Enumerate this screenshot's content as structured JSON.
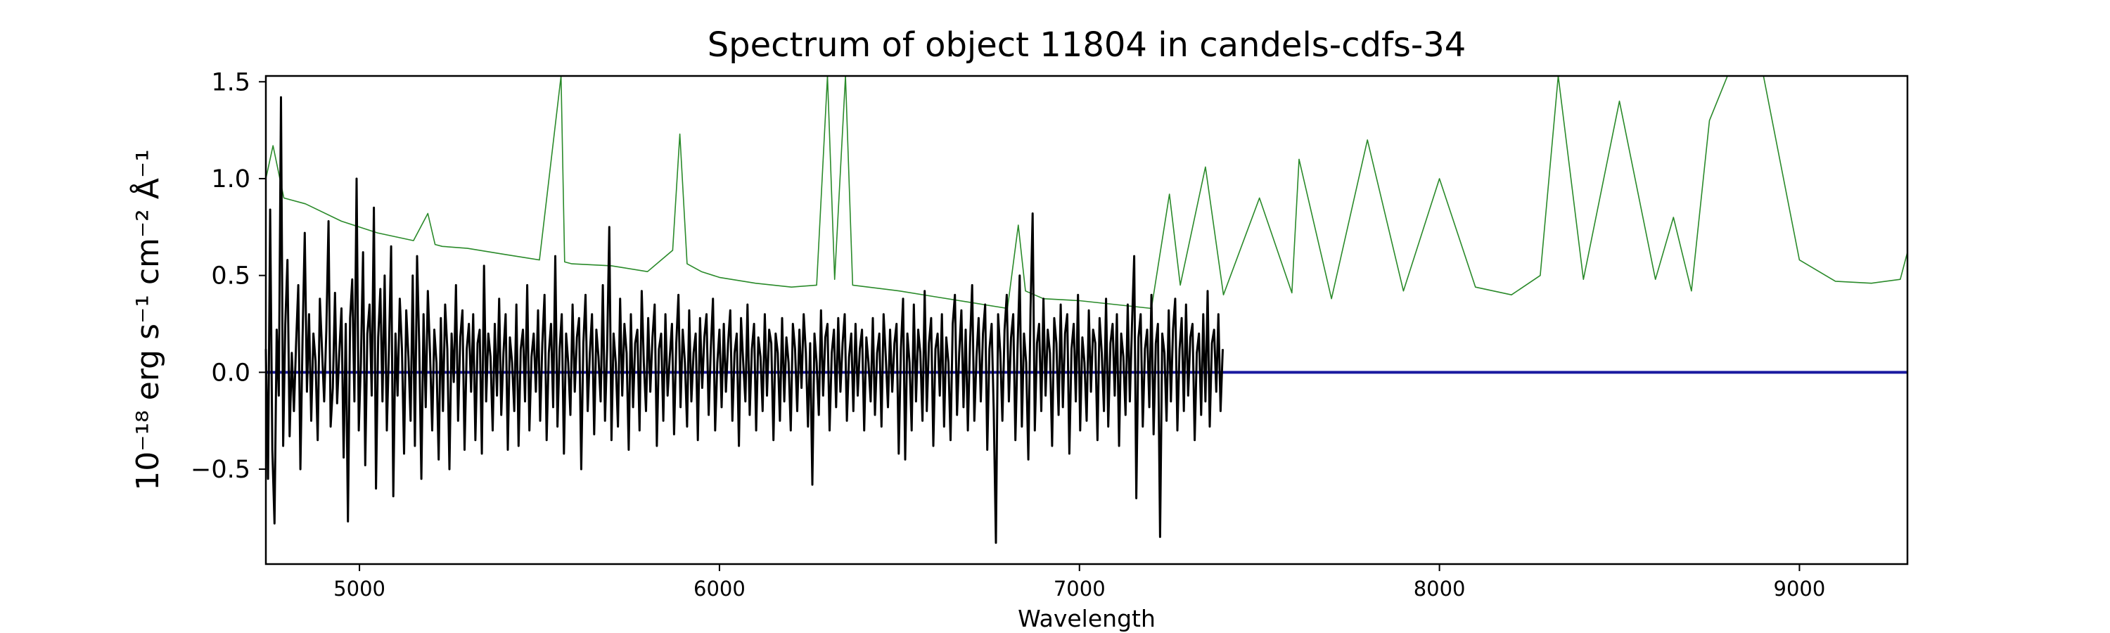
{
  "chart_data": {
    "type": "line",
    "title": "Spectrum of object 11804 in candels-cdfs-34",
    "xlabel": "Wavelength",
    "ylabel": "10⁻¹⁸ erg s⁻¹ cm⁻² Å⁻¹",
    "xlim": [
      4740,
      9300
    ],
    "ylim": [
      -0.99,
      1.53
    ],
    "x_ticks": [
      5000,
      6000,
      7000,
      8000,
      9000
    ],
    "x_tick_labels": [
      "5000",
      "6000",
      "7000",
      "8000",
      "9000"
    ],
    "y_ticks": [
      -0.5,
      0.0,
      0.5,
      1.0,
      1.5
    ],
    "y_tick_labels": [
      "−0.5",
      "0.0",
      "0.5",
      "1.0",
      "1.5"
    ],
    "grid": false,
    "legend": "none",
    "series": [
      {
        "role": "noise / error spectrum",
        "color": "#2a8a2a",
        "x": [
          4740,
          4760,
          4790,
          4850,
          4950,
          5050,
          5150,
          5190,
          5210,
          5230,
          5300,
          5400,
          5500,
          5560,
          5570,
          5590,
          5700,
          5800,
          5870,
          5890,
          5910,
          5950,
          6000,
          6100,
          6200,
          6270,
          6300,
          6320,
          6350,
          6370,
          6500,
          6600,
          6700,
          6800,
          6830,
          6850,
          6900,
          7000,
          7100,
          7200,
          7250,
          7280,
          7350,
          7400,
          7500,
          7590,
          7610,
          7700,
          7800,
          7900,
          8000,
          8100,
          8200,
          8280,
          8330,
          8400,
          8500,
          8600,
          8650,
          8700,
          8750,
          8800,
          8900,
          9000,
          9100,
          9200,
          9280,
          9300
        ],
        "y": [
          1.0,
          1.17,
          0.9,
          0.87,
          0.78,
          0.72,
          0.68,
          0.82,
          0.66,
          0.65,
          0.64,
          0.61,
          0.58,
          1.53,
          0.57,
          0.56,
          0.55,
          0.52,
          0.63,
          1.23,
          0.56,
          0.52,
          0.49,
          0.46,
          0.44,
          0.45,
          1.53,
          0.48,
          1.53,
          0.45,
          0.42,
          0.39,
          0.36,
          0.33,
          0.76,
          0.42,
          0.38,
          0.37,
          0.35,
          0.33,
          0.92,
          0.45,
          1.06,
          0.4,
          0.9,
          0.41,
          1.1,
          0.38,
          1.2,
          0.42,
          1.0,
          0.44,
          0.4,
          0.5,
          1.53,
          0.48,
          1.4,
          0.48,
          0.8,
          0.42,
          1.3,
          1.53,
          1.53,
          0.58,
          0.47,
          0.46,
          0.48,
          0.62
        ]
      },
      {
        "role": "model",
        "color": "#1a1aa0",
        "x": [
          4740,
          9300
        ],
        "y": [
          0.0,
          0.0
        ]
      },
      {
        "role": "observed flux",
        "color": "#000000",
        "x_start": 4740,
        "x_step": 6,
        "y": [
          0.12,
          -0.55,
          0.84,
          -0.4,
          -0.78,
          0.22,
          -0.12,
          1.42,
          -0.38,
          0.25,
          0.58,
          -0.33,
          0.1,
          -0.2,
          0.15,
          0.45,
          -0.5,
          0.18,
          0.72,
          -0.1,
          0.3,
          -0.25,
          0.2,
          0.06,
          -0.35,
          0.38,
          0.12,
          -0.15,
          0.22,
          0.78,
          -0.28,
          -0.08,
          0.41,
          -0.16,
          0.1,
          0.33,
          -0.44,
          0.25,
          -0.77,
          0.28,
          0.48,
          -0.15,
          1.0,
          -0.3,
          0.05,
          0.62,
          -0.48,
          0.2,
          0.35,
          -0.12,
          0.85,
          -0.6,
          0.18,
          0.43,
          -0.15,
          0.5,
          -0.3,
          0.12,
          0.65,
          -0.64,
          0.2,
          -0.12,
          0.38,
          0.12,
          -0.42,
          0.32,
          0.08,
          -0.25,
          0.5,
          -0.38,
          0.6,
          0.15,
          -0.55,
          0.3,
          -0.18,
          0.42,
          0.1,
          -0.3,
          0.22,
          0.05,
          -0.45,
          0.28,
          -0.2,
          0.35,
          0.12,
          -0.5,
          0.2,
          -0.05,
          0.45,
          -0.25,
          0.18,
          0.32,
          -0.4,
          0.12,
          0.25,
          -0.1,
          0.3,
          -0.35,
          0.15,
          0.22,
          -0.42,
          0.55,
          -0.15,
          0.2,
          0.08,
          -0.3,
          0.25,
          -0.12,
          0.38,
          -0.22,
          0.1,
          0.3,
          -0.4,
          0.18,
          0.05,
          -0.2,
          0.35,
          -0.38,
          0.12,
          0.22,
          -0.15,
          0.45,
          -0.3,
          0.08,
          0.2,
          -0.1,
          0.32,
          -0.25,
          0.15,
          0.4,
          -0.35,
          0.1,
          0.25,
          -0.18,
          0.6,
          -0.28,
          0.12,
          0.3,
          -0.42,
          0.2,
          0.05,
          -0.22,
          0.35,
          -0.1,
          0.18,
          0.28,
          -0.5,
          0.15,
          0.4,
          -0.2,
          0.1,
          0.3,
          -0.32,
          0.22,
          0.08,
          -0.15,
          0.45,
          -0.25,
          0.12,
          0.75,
          -0.35,
          0.2,
          0.05,
          -0.28,
          0.38,
          -0.12,
          0.25,
          0.1,
          -0.4,
          0.3,
          -0.18,
          0.15,
          0.22,
          -0.3,
          0.42,
          0.05,
          -0.2,
          0.28,
          -0.1,
          0.18,
          0.35,
          -0.38,
          0.12,
          0.2,
          -0.25,
          0.3,
          -0.12,
          0.08,
          0.25,
          -0.32,
          0.15,
          0.4,
          -0.18,
          0.22,
          0.05,
          -0.28,
          0.32,
          -0.15,
          0.1,
          0.2,
          -0.35,
          0.28,
          -0.08,
          0.18,
          0.3,
          -0.22,
          0.12,
          0.38,
          -0.3,
          0.05,
          0.22,
          -0.18,
          0.25,
          -0.1,
          0.15,
          0.32,
          -0.25,
          0.1,
          0.2,
          -0.38,
          0.28,
          0.05,
          -0.15,
          0.35,
          -0.22,
          0.12,
          0.25,
          -0.3,
          0.18,
          0.08,
          -0.2,
          0.3,
          -0.12,
          0.22,
          0.15,
          -0.35,
          0.2,
          0.1,
          -0.25,
          0.28,
          -0.15,
          0.18,
          0.05,
          -0.3,
          0.25,
          0.12,
          -0.2,
          0.22,
          -0.08,
          0.3,
          0.1,
          -0.28,
          0.15,
          -0.58,
          0.2,
          0.05,
          -0.22,
          0.32,
          -0.12,
          0.18,
          0.25,
          -0.3,
          0.1,
          0.22,
          -0.18,
          0.28,
          -0.1,
          0.15,
          0.3,
          -0.25,
          0.08,
          0.2,
          -0.2,
          0.25,
          -0.12,
          0.12,
          0.22,
          -0.3,
          0.18,
          0.05,
          -0.15,
          0.28,
          -0.22,
          0.1,
          0.2,
          -0.28,
          0.3,
          0.08,
          -0.18,
          0.22,
          -0.1,
          0.15,
          0.25,
          -0.42,
          0.12,
          0.38,
          -0.45,
          0.2,
          0.05,
          -0.3,
          0.35,
          -0.15,
          0.22,
          0.1,
          -0.25,
          0.42,
          -0.2,
          0.15,
          0.28,
          -0.38,
          0.12,
          0.2,
          -0.12,
          0.3,
          -0.28,
          0.18,
          0.05,
          -0.35,
          0.25,
          0.4,
          -0.22,
          0.1,
          0.32,
          -0.18,
          0.22,
          -0.3,
          0.15,
          0.45,
          -0.25,
          0.08,
          0.28,
          -0.15,
          0.2,
          0.35,
          -0.4,
          0.12,
          0.25,
          -0.2,
          -0.88,
          0.3,
          0.1,
          -0.25,
          0.22,
          0.4,
          -0.15,
          0.18,
          0.3,
          -0.35,
          0.12,
          0.5,
          -0.28,
          0.2,
          0.05,
          -0.45,
          0.32,
          0.82,
          -0.3,
          0.15,
          0.25,
          -0.2,
          0.38,
          -0.12,
          0.22,
          0.1,
          -0.38,
          0.28,
          0.15,
          -0.22,
          0.35,
          -0.18,
          0.2,
          0.3,
          -0.42,
          0.12,
          0.25,
          -0.15,
          0.4,
          -0.3,
          0.18,
          0.05,
          -0.25,
          0.32,
          -0.1,
          0.22,
          0.15,
          -0.35,
          0.28,
          0.1,
          -0.2,
          0.38,
          -0.28,
          0.15,
          0.25,
          -0.12,
          0.3,
          -0.38,
          0.2,
          0.08,
          -0.22,
          0.35,
          -0.15,
          0.25,
          0.6,
          -0.65,
          0.18,
          0.3,
          -0.28,
          0.12,
          0.22,
          -0.18,
          0.4,
          -0.32,
          0.15,
          0.25,
          -0.85,
          0.2,
          0.1,
          -0.25,
          0.32,
          -0.15,
          0.22,
          0.38,
          -0.3,
          0.12,
          0.28,
          -0.2,
          0.35,
          -0.12,
          0.18,
          0.25,
          -0.35,
          0.1,
          0.2,
          -0.22,
          0.3,
          -0.15,
          0.42,
          -0.28,
          0.15,
          0.22,
          -0.1,
          0.3,
          -0.2,
          0.12
        ]
      }
    ]
  }
}
